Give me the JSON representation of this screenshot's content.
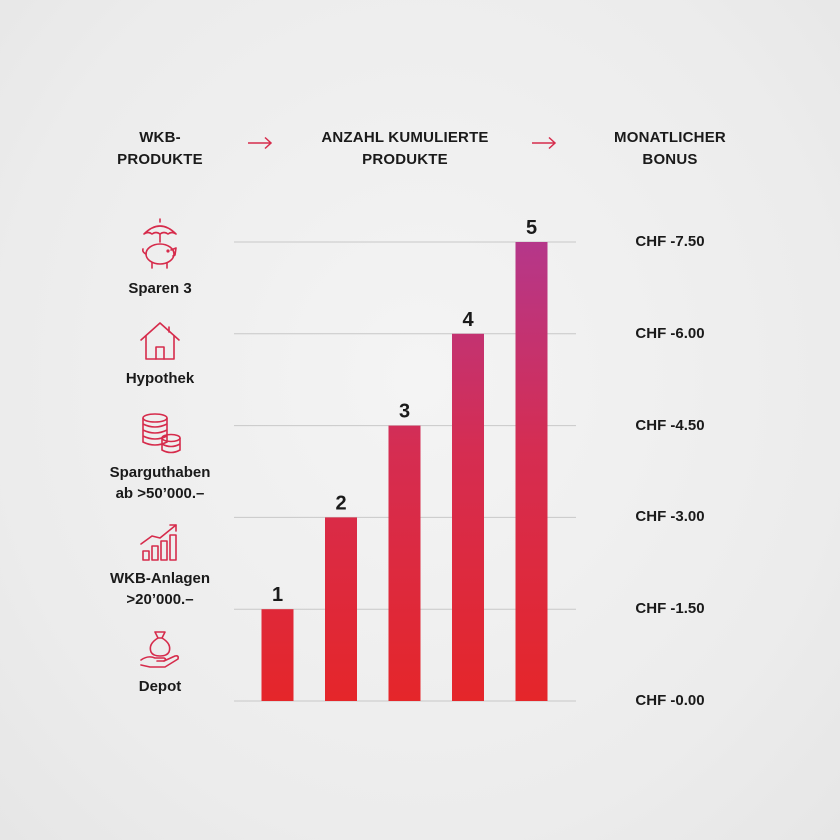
{
  "headers": {
    "products": [
      "WKB-",
      "PRODUKTE"
    ],
    "cumulative": [
      "ANZAHL KUMULIERTE",
      "PRODUKTE"
    ],
    "bonus": [
      "MONATLICHER",
      "BONUS"
    ]
  },
  "colors": {
    "accent": "#d62b4b",
    "bar_bottom": "#e5262a",
    "bar_top": "#b5378a",
    "grid": "#c8c8c8"
  },
  "products": [
    {
      "icon": "piggy-bank-umbrella-icon",
      "label": [
        "Sparen 3"
      ]
    },
    {
      "icon": "house-icon",
      "label": [
        "Hypothek"
      ]
    },
    {
      "icon": "coin-stack-icon",
      "label": [
        "Sparguthaben",
        "ab >50’000.–"
      ]
    },
    {
      "icon": "growth-chart-icon",
      "label": [
        "WKB-Anlagen",
        ">20’000.–"
      ]
    },
    {
      "icon": "hand-money-bag-icon",
      "label": [
        "Depot"
      ]
    }
  ],
  "chart_data": {
    "type": "bar",
    "categories": [
      "1",
      "2",
      "3",
      "4",
      "5"
    ],
    "values": [
      1,
      2,
      3,
      4,
      5
    ],
    "data_labels": [
      "1",
      "2",
      "3",
      "4",
      "5"
    ],
    "y_ticks": [
      0,
      1,
      2,
      3,
      4,
      5
    ],
    "y_tick_labels": [
      "CHF -0.00",
      "CHF -1.50",
      "CHF -3.00",
      "CHF -4.50",
      "CHF -6.00",
      "CHF -7.50"
    ],
    "ylim": [
      0,
      5
    ],
    "grid": true
  }
}
